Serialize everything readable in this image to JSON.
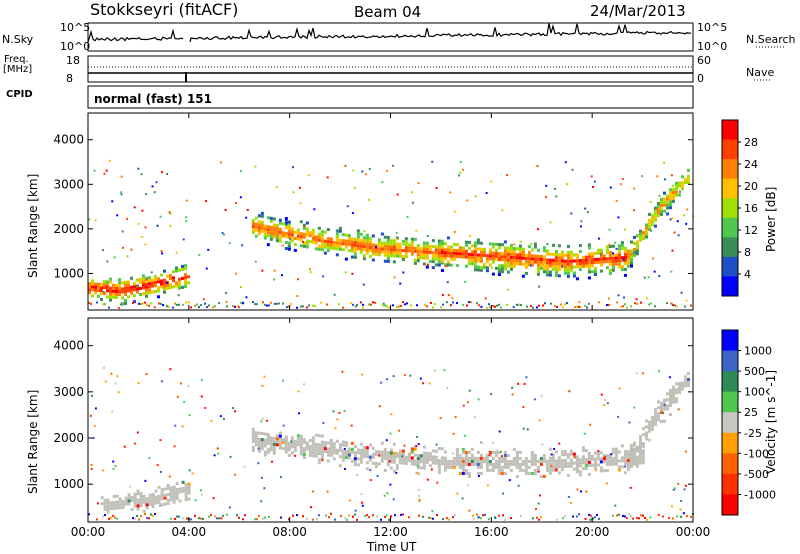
{
  "header": {
    "station": "Stokkseyri (fitACF)",
    "beam": "Beam 04",
    "date": "24/Mar/2013"
  },
  "top_panels": {
    "nsky_label": "N.Sky",
    "nsearch_label": "N.Search",
    "nsky_ticks": [
      "10^5",
      "10^0"
    ],
    "nsearch_ticks": [
      "10^5",
      "10^0"
    ],
    "freq_label": "Freq.",
    "freq_unit": "[MHz]",
    "freq_ticks": [
      "18",
      "8"
    ],
    "nave_label": "Nave",
    "nave_ticks": [
      "60",
      "0"
    ],
    "cpid_label": "CPID",
    "cpid_value": "normal (fast) 151"
  },
  "colors": {
    "power_scale": [
      "#0000ff",
      "#1e4ec8",
      "#3c8c5a",
      "#50c850",
      "#a0e000",
      "#ffc000",
      "#ff8000",
      "#ff4000",
      "#ff0000"
    ],
    "velocity_scale": [
      "#0000ff",
      "#3c64c8",
      "#2e8b57",
      "#50c850",
      "#c8c8c0",
      "#ffa000",
      "#ff6000",
      "#ff3000",
      "#ff0000"
    ],
    "ground_scatter": "#c0bfb8"
  },
  "chart_data": [
    {
      "type": "heatmap",
      "title": "Power",
      "ylabel": "Slant Range [km]",
      "xlabel": "Time UT",
      "xticks": [
        "00:00",
        "04:00",
        "08:00",
        "12:00",
        "16:00",
        "20:00",
        "00:00"
      ],
      "yticks": [
        1000,
        2000,
        3000,
        4000
      ],
      "ylim": [
        180,
        4600
      ],
      "colorbar": {
        "label": "Power [dB]",
        "ticks": [
          4,
          8,
          12,
          16,
          20,
          24,
          28
        ],
        "range": [
          0,
          30
        ]
      },
      "bands": [
        {
          "start_h": 0.0,
          "end_h": 4.0,
          "center_km": [
            700,
            650,
            800,
            1000
          ],
          "width_km": 300,
          "peak_db": 28
        },
        {
          "start_h": 6.5,
          "end_h": 14.0,
          "center_km": [
            2100,
            1800,
            1600,
            1500
          ],
          "width_km": 350,
          "peak_db": 24
        },
        {
          "start_h": 14.0,
          "end_h": 21.5,
          "center_km": [
            1500,
            1400,
            1300,
            1400
          ],
          "width_km": 400,
          "peak_db": 26
        },
        {
          "start_h": 21.5,
          "end_h": 23.8,
          "center_km": [
            1500,
            2500,
            3200
          ],
          "width_km": 300,
          "peak_db": 20
        }
      ]
    },
    {
      "type": "heatmap",
      "title": "Velocity",
      "ylabel": "Slant Range [km]",
      "xlabel": "Time UT",
      "xticks": [
        "00:00",
        "04:00",
        "08:00",
        "12:00",
        "16:00",
        "20:00",
        "00:00"
      ],
      "yticks": [
        1000,
        2000,
        3000,
        4000
      ],
      "ylim": [
        180,
        4600
      ],
      "colorbar": {
        "label": "Velocity [m s^-1]",
        "ticks": [
          1000,
          500,
          100,
          25,
          -25,
          -100,
          -500,
          -1000
        ]
      },
      "ground_scatter_bands": [
        {
          "start_h": 0.5,
          "end_h": 4.0,
          "center_km": [
            600,
            700,
            900
          ],
          "width_km": 250
        },
        {
          "start_h": 6.5,
          "end_h": 22.0,
          "center_km": [
            2000,
            1700,
            1500,
            1500,
            1600
          ],
          "width_km": 300
        },
        {
          "start_h": 21.5,
          "end_h": 23.8,
          "center_km": [
            1600,
            2600,
            3300
          ],
          "width_km": 300
        }
      ]
    }
  ]
}
